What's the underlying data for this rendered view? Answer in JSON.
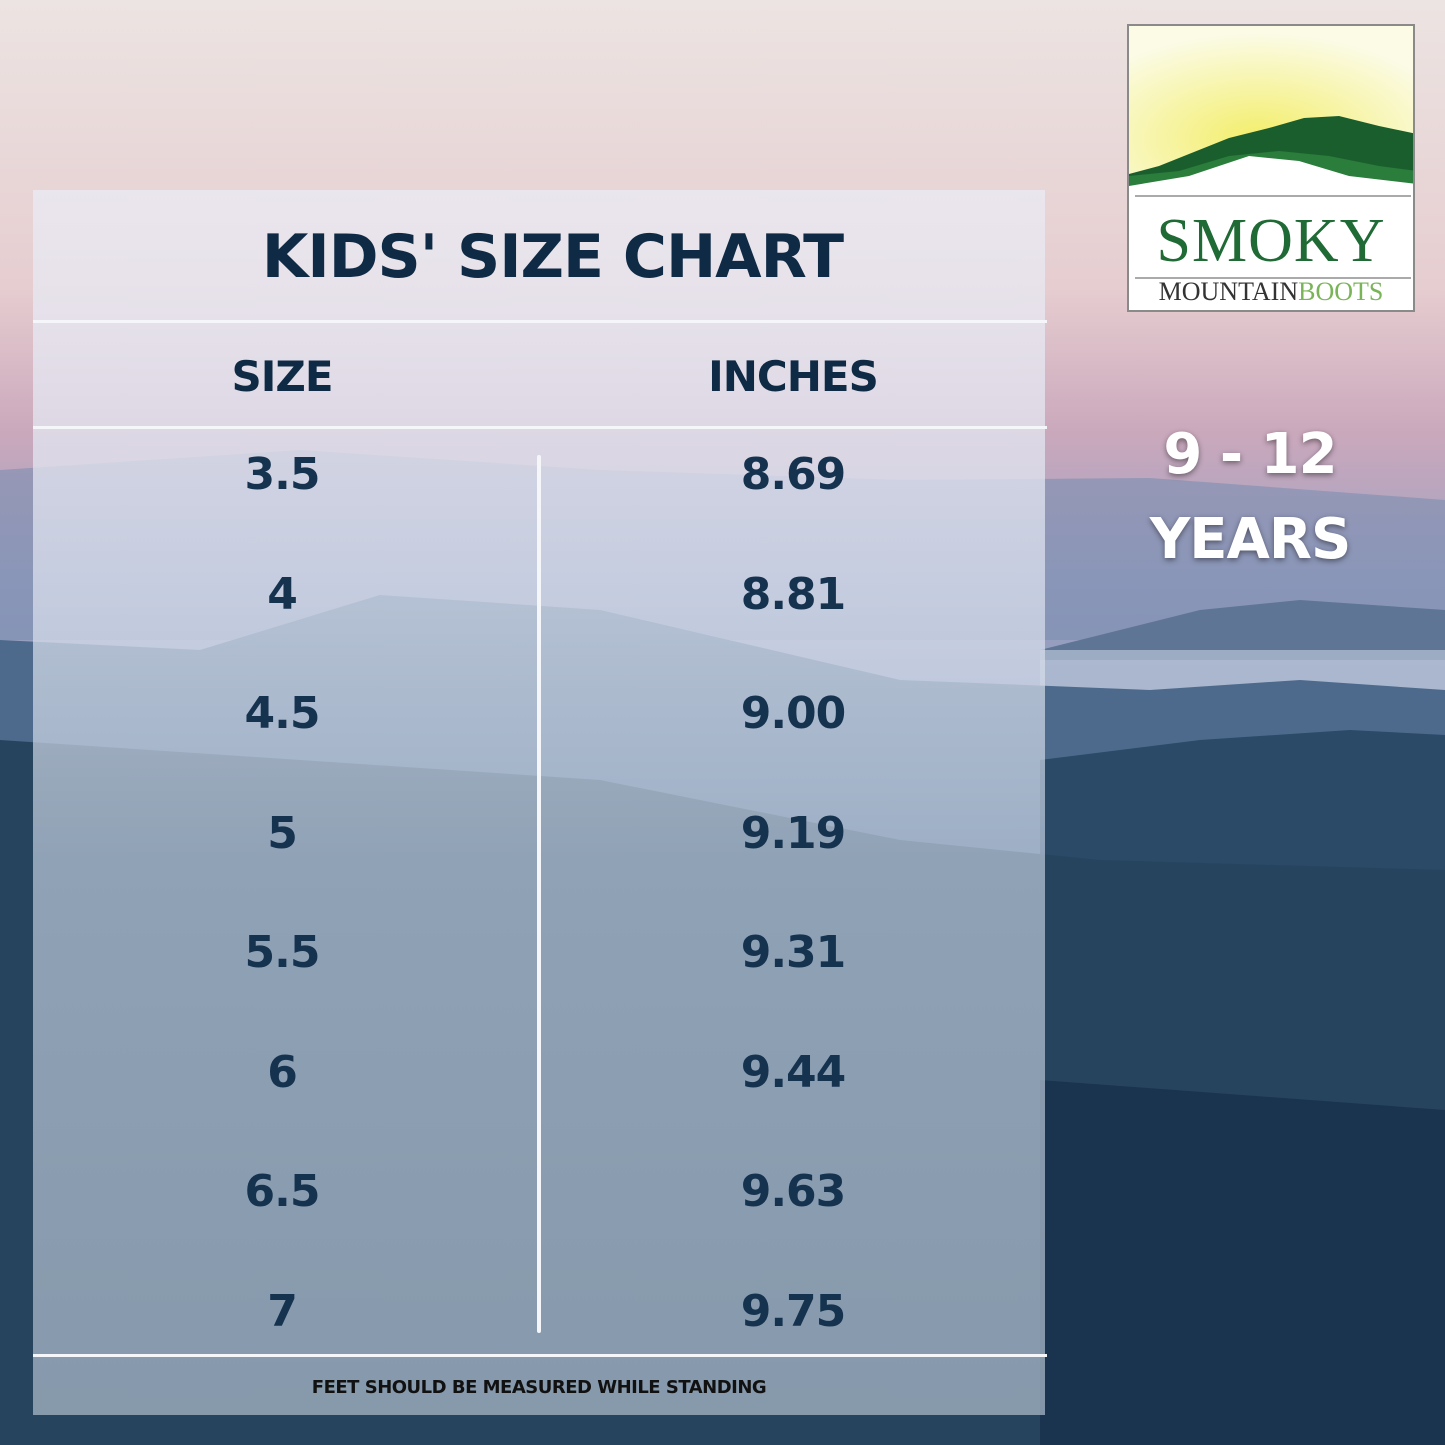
{
  "logo": {
    "brand_line1": "SMOKY",
    "brand_line2a": "MOUNTAIN",
    "brand_line2b": "BOOTS"
  },
  "title": "KIDS' SIZE CHART",
  "headers": {
    "size": "SIZE",
    "inches": "INCHES"
  },
  "rows": [
    {
      "size": "3.5",
      "inches": "8.69"
    },
    {
      "size": "4",
      "inches": "8.81"
    },
    {
      "size": "4.5",
      "inches": "9.00"
    },
    {
      "size": "5",
      "inches": "9.19"
    },
    {
      "size": "5.5",
      "inches": "9.31"
    },
    {
      "size": "6",
      "inches": "9.44"
    },
    {
      "size": "6.5",
      "inches": "9.63"
    },
    {
      "size": "7",
      "inches": "9.75"
    }
  ],
  "footer": "FEET SHOULD BE MEASURED WHILE STANDING",
  "age_range": {
    "line1": "9 - 12",
    "line2": "YEARS"
  },
  "colors": {
    "text": "#0f2a45",
    "logo_green": "#1f6a35"
  }
}
